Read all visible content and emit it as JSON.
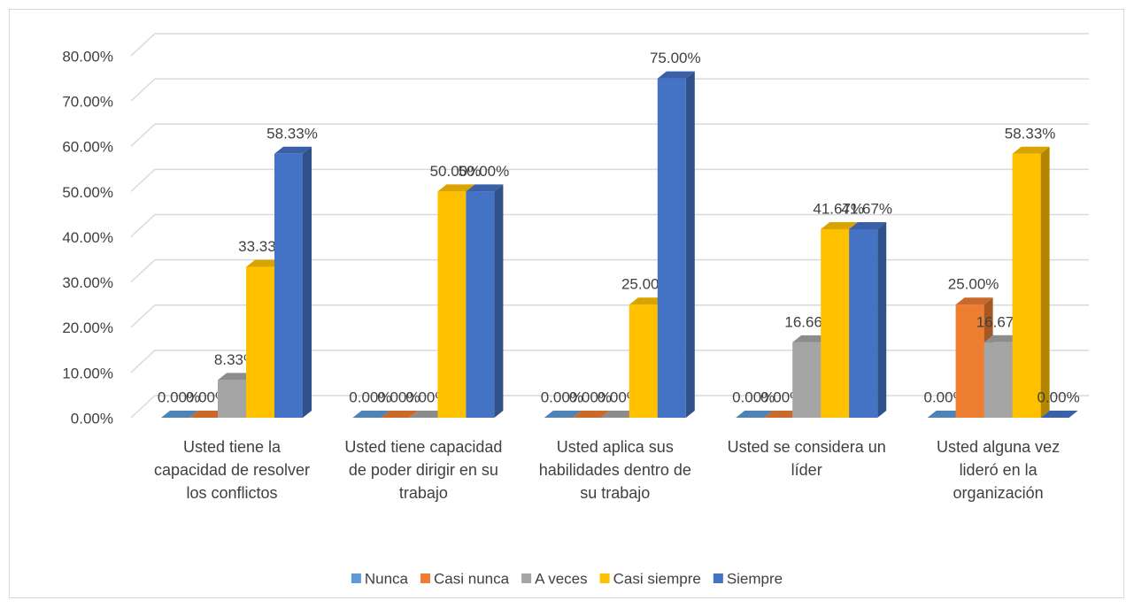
{
  "chart_data": {
    "type": "bar3d",
    "categories": [
      "Usted tiene la capacidad de resolver los conflictos",
      "Usted tiene capacidad de poder dirigir en su trabajo",
      "Usted aplica sus habilidades dentro de su trabajo",
      "Usted se considera un líder",
      "Usted alguna vez lideró en la organización"
    ],
    "series": [
      {
        "name": "Nunca",
        "color": "#5b9bd5",
        "values": [
          0,
          0,
          0,
          0,
          0
        ],
        "value_labels": [
          "0.00%",
          "0.00%",
          "0.00%",
          "0.00%",
          "0.00%"
        ]
      },
      {
        "name": "Casi nunca",
        "color": "#ed7d31",
        "values": [
          0,
          0,
          0,
          0,
          25
        ],
        "value_labels": [
          "0.00%",
          "0.00%",
          "0.00%",
          "0.00%",
          "25.00%"
        ]
      },
      {
        "name": "A veces",
        "color": "#a5a5a5",
        "values": [
          8.33,
          0,
          0,
          16.66,
          16.67
        ],
        "value_labels": [
          "8.33%",
          "0.00%",
          "0.00%",
          "16.66%",
          "16.67%"
        ]
      },
      {
        "name": "Casi siempre",
        "color": "#ffc000",
        "values": [
          33.33,
          50,
          25,
          41.67,
          58.33
        ],
        "value_labels": [
          "33.33%",
          "50.00%",
          "25.00%",
          "41.67%",
          "58.33%"
        ]
      },
      {
        "name": "Siempre",
        "color": "#4472c4",
        "values": [
          58.33,
          50,
          75,
          41.67,
          0
        ],
        "value_labels": [
          "58.33%",
          "50.00%",
          "75.00%",
          "41.67%",
          "0.00%"
        ]
      }
    ],
    "ylim": [
      0,
      80
    ],
    "yticks": [
      {
        "value": 0,
        "label": "0.00%"
      },
      {
        "value": 10,
        "label": "10.00%"
      },
      {
        "value": 20,
        "label": "20.00%"
      },
      {
        "value": 30,
        "label": "30.00%"
      },
      {
        "value": 40,
        "label": "40.00%"
      },
      {
        "value": 50,
        "label": "50.00%"
      },
      {
        "value": 60,
        "label": "60.00%"
      },
      {
        "value": 70,
        "label": "70.00%"
      },
      {
        "value": 80,
        "label": "80.00%"
      }
    ],
    "grid": true,
    "legend": "bottom"
  }
}
